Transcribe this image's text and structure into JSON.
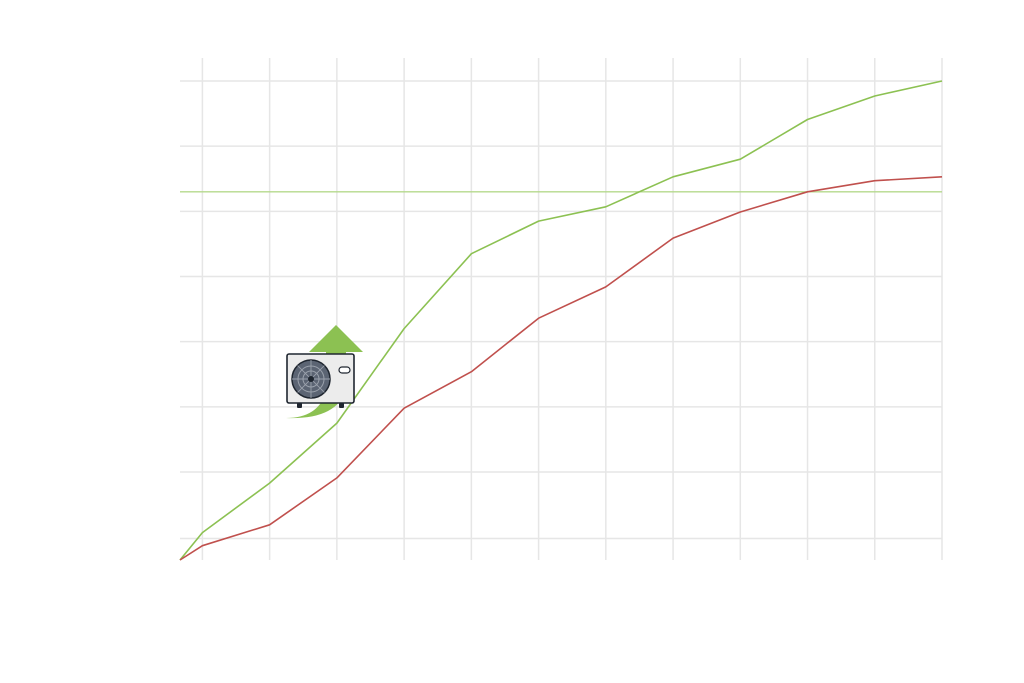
{
  "chart_data": {
    "type": "line",
    "title": "",
    "xlabel": "",
    "ylabel": "",
    "grid": true,
    "legend": "none",
    "x": [
      0,
      1,
      4,
      7,
      10,
      13,
      16,
      19,
      22,
      25,
      28,
      31,
      34
    ],
    "xlim": [
      0,
      34
    ],
    "xgrid": [
      1,
      4,
      7,
      10,
      13,
      16,
      19,
      22,
      25,
      28,
      31,
      34
    ],
    "ylim": [
      0,
      7.35
    ],
    "ygrid": [
      0.33,
      1.35,
      2.35,
      3.35,
      4.35,
      5.35,
      6.35,
      7.35
    ],
    "series": [
      {
        "color": "#8cc152",
        "values": [
          0,
          0.42,
          1.18,
          2.1,
          3.55,
          4.7,
          5.2,
          5.42,
          5.88,
          6.15,
          6.76,
          7.12,
          7.35
        ]
      },
      {
        "color": "#c0504d",
        "values": [
          0,
          0.22,
          0.54,
          1.26,
          2.33,
          2.89,
          3.71,
          4.19,
          4.94,
          5.34,
          5.65,
          5.82,
          5.88
        ]
      }
    ],
    "reference_line": {
      "y": 5.65,
      "color": "#b5d98c"
    }
  },
  "illustration": {
    "icon": "heat-pump-outdoor-unit-icon",
    "arrow_color": "#8cc152"
  }
}
